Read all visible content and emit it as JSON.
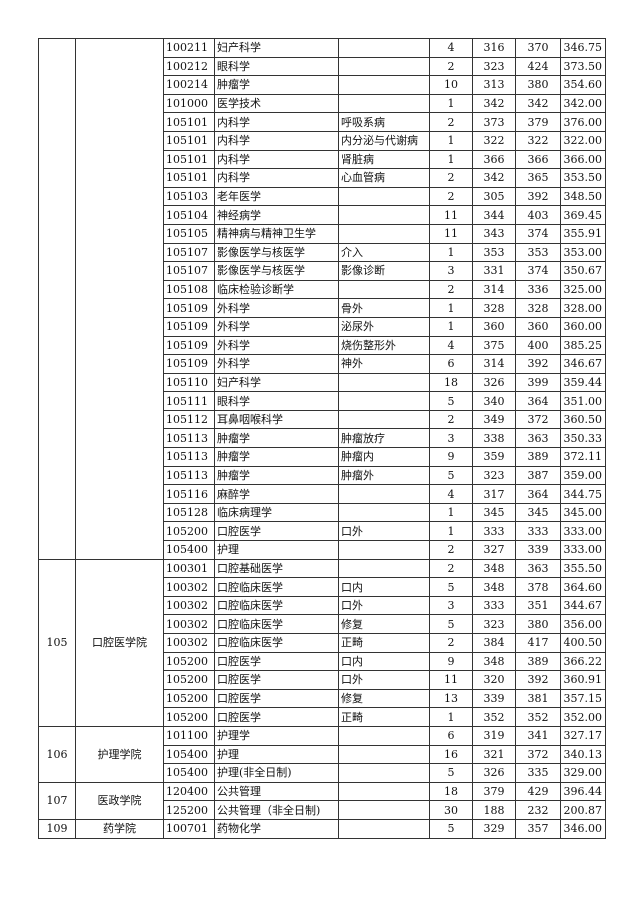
{
  "groups": [
    {
      "code": "",
      "college": "",
      "rows": [
        [
          "100211",
          "妇产科学",
          "",
          "4",
          "316",
          "370",
          "346.75"
        ],
        [
          "100212",
          "眼科学",
          "",
          "2",
          "323",
          "424",
          "373.50"
        ],
        [
          "100214",
          "肿瘤学",
          "",
          "10",
          "313",
          "380",
          "354.60"
        ],
        [
          "101000",
          "医学技术",
          "",
          "1",
          "342",
          "342",
          "342.00"
        ],
        [
          "105101",
          "内科学",
          "呼吸系病",
          "2",
          "373",
          "379",
          "376.00"
        ],
        [
          "105101",
          "内科学",
          "内分泌与代谢病",
          "1",
          "322",
          "322",
          "322.00"
        ],
        [
          "105101",
          "内科学",
          "肾脏病",
          "1",
          "366",
          "366",
          "366.00"
        ],
        [
          "105101",
          "内科学",
          "心血管病",
          "2",
          "342",
          "365",
          "353.50"
        ],
        [
          "105103",
          "老年医学",
          "",
          "2",
          "305",
          "392",
          "348.50"
        ],
        [
          "105104",
          "神经病学",
          "",
          "11",
          "344",
          "403",
          "369.45"
        ],
        [
          "105105",
          "精神病与精神卫生学",
          "",
          "11",
          "343",
          "374",
          "355.91"
        ],
        [
          "105107",
          "影像医学与核医学",
          "介入",
          "1",
          "353",
          "353",
          "353.00"
        ],
        [
          "105107",
          "影像医学与核医学",
          "影像诊断",
          "3",
          "331",
          "374",
          "350.67"
        ],
        [
          "105108",
          "临床检验诊断学",
          "",
          "2",
          "314",
          "336",
          "325.00"
        ],
        [
          "105109",
          "外科学",
          "骨外",
          "1",
          "328",
          "328",
          "328.00"
        ],
        [
          "105109",
          "外科学",
          "泌尿外",
          "1",
          "360",
          "360",
          "360.00"
        ],
        [
          "105109",
          "外科学",
          "烧伤整形外",
          "4",
          "375",
          "400",
          "385.25"
        ],
        [
          "105109",
          "外科学",
          "神外",
          "6",
          "314",
          "392",
          "346.67"
        ],
        [
          "105110",
          "妇产科学",
          "",
          "18",
          "326",
          "399",
          "359.44"
        ],
        [
          "105111",
          "眼科学",
          "",
          "5",
          "340",
          "364",
          "351.00"
        ],
        [
          "105112",
          "耳鼻咽喉科学",
          "",
          "2",
          "349",
          "372",
          "360.50"
        ],
        [
          "105113",
          "肿瘤学",
          "肿瘤放疗",
          "3",
          "338",
          "363",
          "350.33"
        ],
        [
          "105113",
          "肿瘤学",
          "肿瘤内",
          "9",
          "359",
          "389",
          "372.11"
        ],
        [
          "105113",
          "肿瘤学",
          "肿瘤外",
          "5",
          "323",
          "387",
          "359.00"
        ],
        [
          "105116",
          "麻醉学",
          "",
          "4",
          "317",
          "364",
          "344.75"
        ],
        [
          "105128",
          "临床病理学",
          "",
          "1",
          "345",
          "345",
          "345.00"
        ],
        [
          "105200",
          "口腔医学",
          "口外",
          "1",
          "333",
          "333",
          "333.00"
        ],
        [
          "105400",
          "护理",
          "",
          "2",
          "327",
          "339",
          "333.00"
        ]
      ]
    },
    {
      "code": "105",
      "college": "口腔医学院",
      "rows": [
        [
          "100301",
          "口腔基础医学",
          "",
          "2",
          "348",
          "363",
          "355.50"
        ],
        [
          "100302",
          "口腔临床医学",
          "口内",
          "5",
          "348",
          "378",
          "364.60"
        ],
        [
          "100302",
          "口腔临床医学",
          "口外",
          "3",
          "333",
          "351",
          "344.67"
        ],
        [
          "100302",
          "口腔临床医学",
          "修复",
          "5",
          "323",
          "380",
          "356.00"
        ],
        [
          "100302",
          "口腔临床医学",
          "正畸",
          "2",
          "384",
          "417",
          "400.50"
        ],
        [
          "105200",
          "口腔医学",
          "口内",
          "9",
          "348",
          "389",
          "366.22"
        ],
        [
          "105200",
          "口腔医学",
          "口外",
          "11",
          "320",
          "392",
          "360.91"
        ],
        [
          "105200",
          "口腔医学",
          "修复",
          "13",
          "339",
          "381",
          "357.15"
        ],
        [
          "105200",
          "口腔医学",
          "正畸",
          "1",
          "352",
          "352",
          "352.00"
        ]
      ]
    },
    {
      "code": "106",
      "college": "护理学院",
      "rows": [
        [
          "101100",
          "护理学",
          "",
          "6",
          "319",
          "341",
          "327.17"
        ],
        [
          "105400",
          "护理",
          "",
          "16",
          "321",
          "372",
          "340.13"
        ],
        [
          "105400",
          "护理(非全日制)",
          "",
          "5",
          "326",
          "335",
          "329.00"
        ]
      ]
    },
    {
      "code": "107",
      "college": "医政学院",
      "rows": [
        [
          "120400",
          "公共管理",
          "",
          "18",
          "379",
          "429",
          "396.44"
        ],
        [
          "125200",
          "公共管理（非全日制)",
          "",
          "30",
          "188",
          "232",
          "200.87"
        ]
      ]
    },
    {
      "code": "109",
      "college": "药学院",
      "rows": [
        [
          "100701",
          "药物化学",
          "",
          "5",
          "329",
          "357",
          "346.00"
        ]
      ]
    }
  ]
}
